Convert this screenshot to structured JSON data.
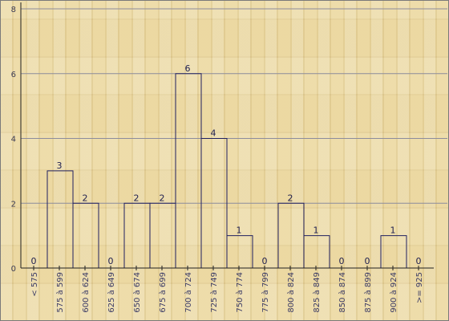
{
  "chart_data": {
    "type": "bar",
    "categories": [
      "< 575",
      "575 à 599",
      "600 à 624",
      "625 à 649",
      "650 à 674",
      "675 à 699",
      "700 à 724",
      "725 à 749",
      "750 à 774",
      "775 à 799",
      "800 à 824",
      "825 à 849",
      "850 à 874",
      "875 à 899",
      "900 à 924",
      ">= 925"
    ],
    "values": [
      0,
      3,
      2,
      0,
      2,
      2,
      6,
      4,
      1,
      0,
      2,
      1,
      0,
      0,
      1,
      0
    ],
    "ylim": [
      0,
      8
    ],
    "yticks": [
      0,
      2,
      4,
      6,
      8
    ],
    "grid": true,
    "title": "",
    "xlabel": "",
    "ylabel": ""
  },
  "colors": {
    "bar_edge": "#202060",
    "gridline": "#8c8c9c",
    "axis": "#202020"
  }
}
